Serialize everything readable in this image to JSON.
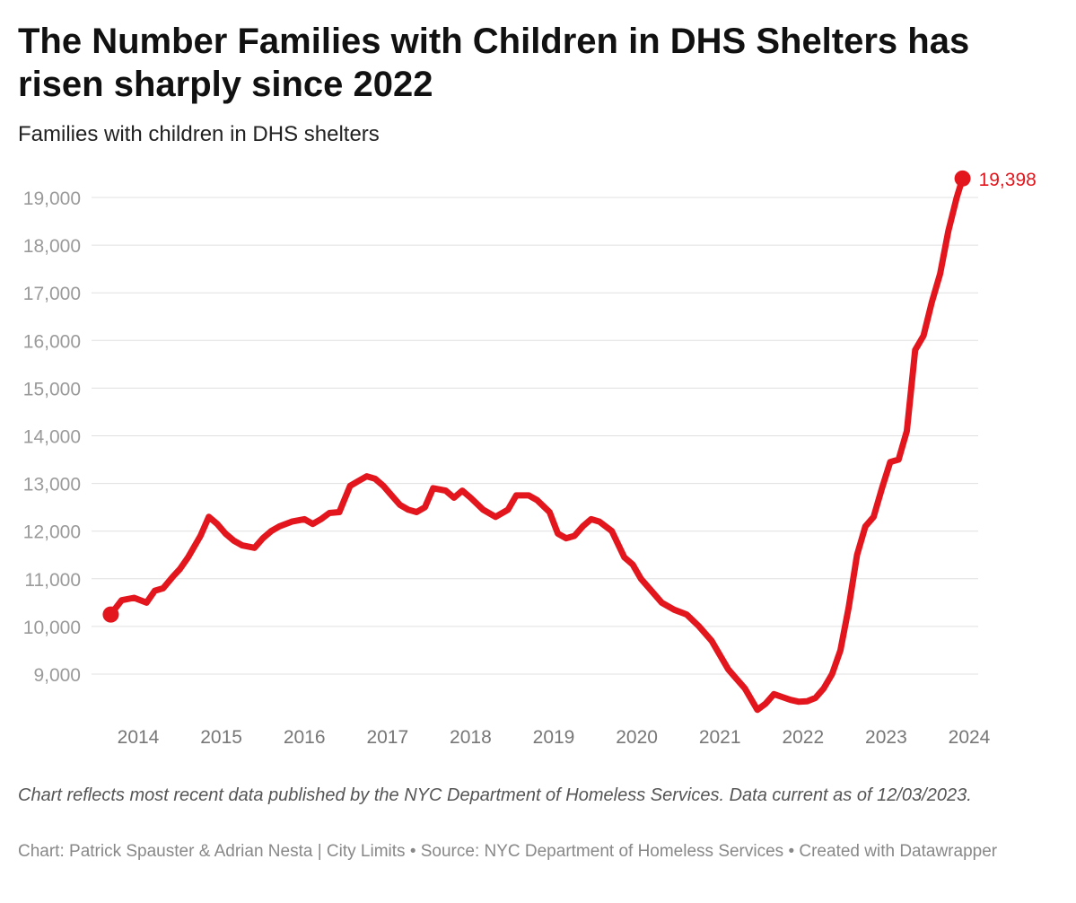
{
  "header": {
    "title": "The Number Families with Children in DHS Shelters has risen sharply since 2022",
    "subtitle": "Families with children in DHS shelters"
  },
  "footer": {
    "note": "Chart reflects most recent data published by the NYC Department of Homeless Services. Data current as of 12/03/2023.",
    "credit": "Chart: Patrick Spauster & Adrian Nesta | City Limits • Source: NYC Department of Homeless Services • Created with Datawrapper"
  },
  "chart_data": {
    "type": "line",
    "title": "The Number Families with Children in DHS Shelters has risen sharply since 2022",
    "subtitle": "Families with children in DHS shelters",
    "xlabel": "",
    "ylabel": "",
    "x_ticks": [
      "2014",
      "2015",
      "2016",
      "2017",
      "2018",
      "2019",
      "2020",
      "2021",
      "2022",
      "2023",
      "2024"
    ],
    "y_ticks": [
      "9,000",
      "10,000",
      "11,000",
      "12,000",
      "13,000",
      "14,000",
      "15,000",
      "16,000",
      "17,000",
      "18,000",
      "19,000"
    ],
    "xlim": [
      2013.6,
      2024.1
    ],
    "ylim": [
      8200,
      19500
    ],
    "grid": "horizontal",
    "line_color": "#e3161d",
    "end_label": "19,398",
    "series": [
      {
        "x": [
          2013.67,
          2013.8,
          2013.95,
          2014.1,
          2014.2,
          2014.3,
          2014.42,
          2014.5,
          2014.6,
          2014.75,
          2014.85,
          2014.95,
          2015.05,
          2015.15,
          2015.25,
          2015.4,
          2015.5,
          2015.6,
          2015.7,
          2015.85,
          2016.0,
          2016.1,
          2016.2,
          2016.3,
          2016.42,
          2016.55,
          2016.65,
          2016.75,
          2016.85,
          2016.95,
          2017.05,
          2017.15,
          2017.25,
          2017.35,
          2017.45,
          2017.55,
          2017.7,
          2017.8,
          2017.9,
          2018.0,
          2018.15,
          2018.3,
          2018.45,
          2018.55,
          2018.7,
          2018.8,
          2018.95,
          2019.05,
          2019.15,
          2019.25,
          2019.35,
          2019.45,
          2019.55,
          2019.7,
          2019.85,
          2019.95,
          2020.05,
          2020.15,
          2020.3,
          2020.45,
          2020.6,
          2020.75,
          2020.9,
          2021.0,
          2021.1,
          2021.2,
          2021.3,
          2021.45,
          2021.55,
          2021.65,
          2021.75,
          2021.85,
          2021.95,
          2022.05,
          2022.15,
          2022.25,
          2022.35,
          2022.45,
          2022.55,
          2022.65,
          2022.75,
          2022.85,
          2022.95,
          2023.05,
          2023.15,
          2023.25,
          2023.35,
          2023.45,
          2023.55,
          2023.65,
          2023.75,
          2023.85,
          2023.92
        ],
        "values": [
          10250,
          10550,
          10600,
          10500,
          10750,
          10800,
          11050,
          11200,
          11450,
          11900,
          12300,
          12150,
          11950,
          11800,
          11700,
          11650,
          11850,
          12000,
          12100,
          12200,
          12250,
          12150,
          12250,
          12380,
          12400,
          12950,
          13050,
          13150,
          13100,
          12950,
          12750,
          12550,
          12450,
          12400,
          12500,
          12900,
          12850,
          12700,
          12850,
          12700,
          12450,
          12300,
          12450,
          12750,
          12750,
          12650,
          12400,
          11950,
          11850,
          11900,
          12100,
          12250,
          12200,
          12000,
          11450,
          11300,
          11000,
          10800,
          10500,
          10350,
          10250,
          10000,
          9700,
          9400,
          9100,
          8900,
          8700,
          8250,
          8380,
          8580,
          8520,
          8460,
          8420,
          8430,
          8500,
          8700,
          9000,
          9500,
          10400,
          11500,
          12100,
          12300,
          12900,
          13450,
          13500,
          14100,
          15800,
          16100,
          16800,
          17400,
          18300,
          19000,
          19398
        ]
      }
    ]
  }
}
